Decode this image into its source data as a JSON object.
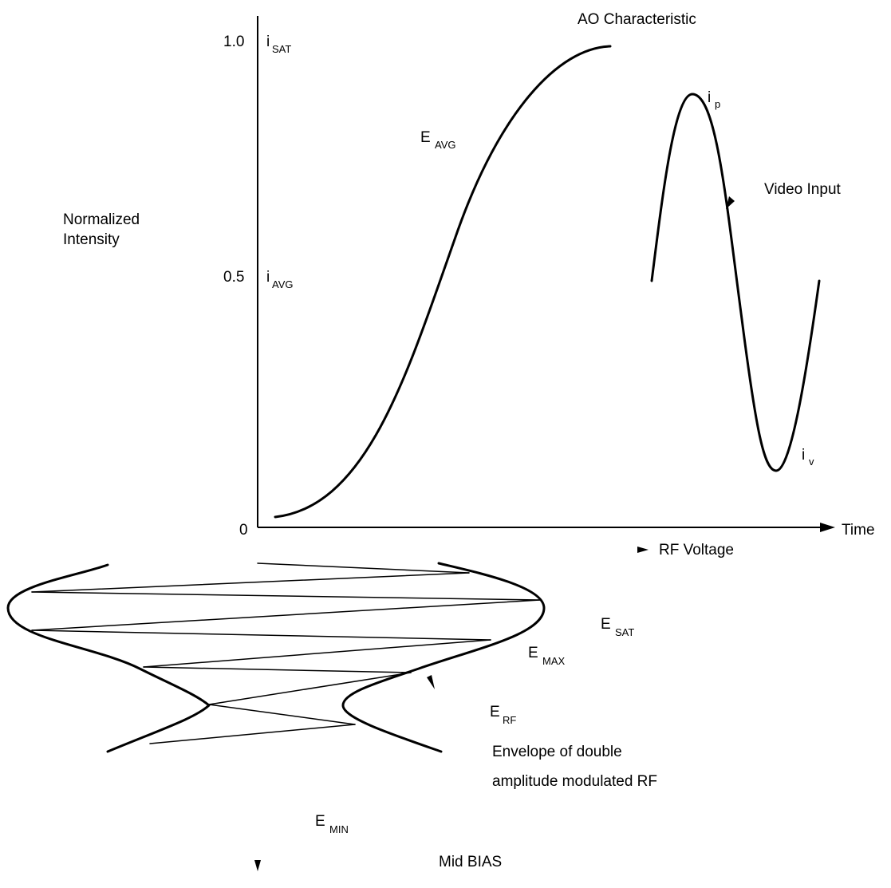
{
  "title": "AO Characteristic",
  "y_axis": {
    "label_line1": "Normalized",
    "label_line2": "Intensity",
    "ticks": [
      {
        "value": "1.0",
        "symbol": "i",
        "subscript": "SAT"
      },
      {
        "value": "0.5",
        "symbol": "i",
        "subscript": "AVG"
      },
      {
        "value": "0"
      }
    ]
  },
  "x_axis": {
    "time_label": "Time",
    "rf_voltage_label": "RF Voltage"
  },
  "curve_label": {
    "symbol": "E",
    "subscript": "AVG"
  },
  "video": {
    "label": "Video Input",
    "peak": {
      "symbol": "i",
      "subscript": "p"
    },
    "valley": {
      "symbol": "i",
      "subscript": "v"
    }
  },
  "envelope": {
    "e_sat": {
      "symbol": "E",
      "subscript": "SAT"
    },
    "e_max": {
      "symbol": "E",
      "subscript": "MAX"
    },
    "e_rf": {
      "symbol": "E",
      "subscript": "RF"
    },
    "e_min": {
      "symbol": "E",
      "subscript": "MIN"
    },
    "caption_line1": "Envelope of double",
    "caption_line2": "amplitude modulated RF"
  },
  "bias_label": "Mid BIAS"
}
